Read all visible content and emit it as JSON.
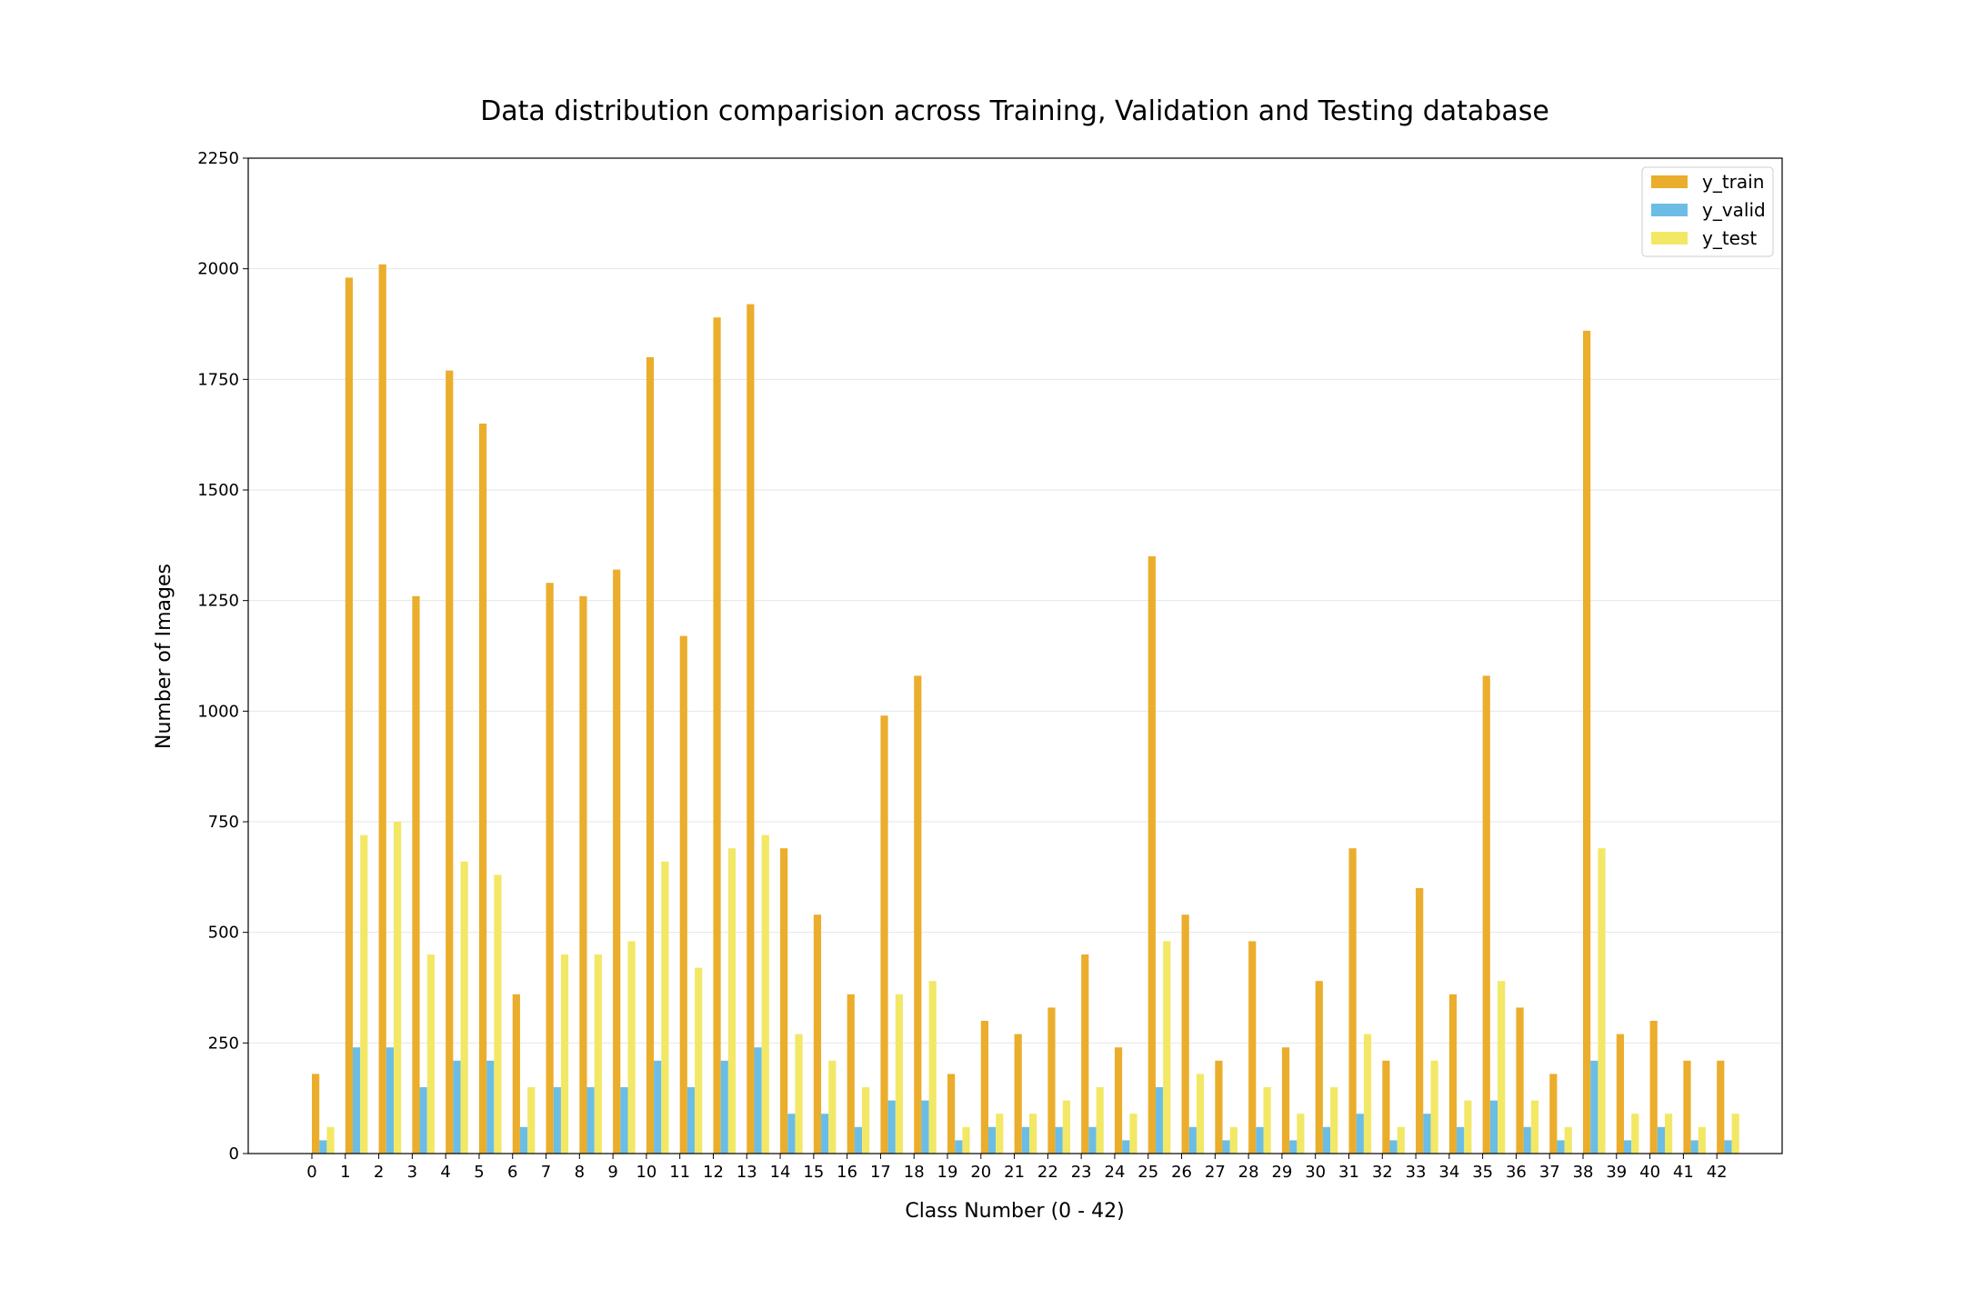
{
  "chart_data": {
    "type": "bar",
    "title": "Data distribution comparision across Training, Validation and Testing database",
    "xlabel": "Class Number (0 - 42)",
    "ylabel": "Number of Images",
    "ylim": [
      0,
      2250
    ],
    "yticks": [
      "0",
      "250",
      "500",
      "750",
      "1000",
      "1250",
      "1500",
      "1750",
      "2000",
      "2250"
    ],
    "grid": true,
    "legend_position": "top-right",
    "categories": [
      "0",
      "1",
      "2",
      "3",
      "4",
      "5",
      "6",
      "7",
      "8",
      "9",
      "10",
      "11",
      "12",
      "13",
      "14",
      "15",
      "16",
      "17",
      "18",
      "19",
      "20",
      "21",
      "22",
      "23",
      "24",
      "25",
      "26",
      "27",
      "28",
      "29",
      "30",
      "31",
      "32",
      "33",
      "34",
      "35",
      "36",
      "37",
      "38",
      "39",
      "40",
      "41",
      "42"
    ],
    "series": [
      {
        "name": "y_train",
        "color": "#EBAD2C",
        "values": [
          180,
          1980,
          2010,
          1260,
          1770,
          1650,
          360,
          1290,
          1260,
          1320,
          1800,
          1170,
          1890,
          1920,
          690,
          540,
          360,
          990,
          1080,
          180,
          300,
          270,
          330,
          450,
          240,
          1350,
          540,
          210,
          480,
          240,
          390,
          690,
          210,
          600,
          360,
          1080,
          330,
          180,
          1860,
          270,
          300,
          210,
          210
        ]
      },
      {
        "name": "y_valid",
        "color": "#6BBDE6",
        "values": [
          30,
          240,
          240,
          150,
          210,
          210,
          60,
          150,
          150,
          150,
          210,
          150,
          210,
          240,
          90,
          90,
          60,
          120,
          120,
          30,
          60,
          60,
          60,
          60,
          30,
          150,
          60,
          30,
          60,
          30,
          60,
          90,
          30,
          90,
          60,
          120,
          60,
          30,
          210,
          30,
          60,
          30,
          30
        ]
      },
      {
        "name": "y_test",
        "color": "#F2E866",
        "values": [
          60,
          720,
          750,
          450,
          660,
          630,
          150,
          450,
          450,
          480,
          660,
          420,
          690,
          720,
          270,
          210,
          150,
          360,
          390,
          60,
          90,
          90,
          120,
          150,
          90,
          480,
          180,
          60,
          150,
          90,
          150,
          270,
          60,
          210,
          120,
          390,
          120,
          60,
          690,
          90,
          90,
          60,
          90
        ]
      }
    ]
  }
}
